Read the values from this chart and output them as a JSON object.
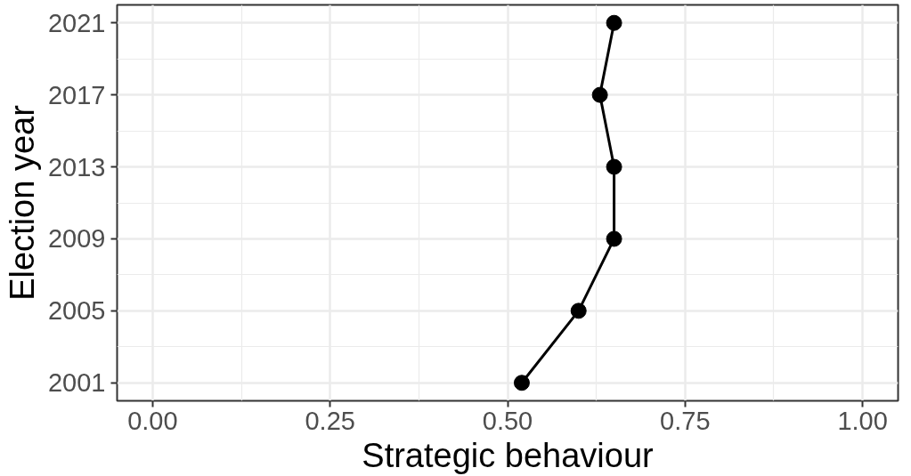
{
  "chart_data": {
    "type": "line",
    "xlabel": "Strategic behaviour",
    "ylabel": "Election year",
    "x": [
      0.52,
      0.6,
      0.65,
      0.65,
      0.63,
      0.65
    ],
    "series": [
      {
        "color": "#000000",
        "values": [
          2001,
          2005,
          2009,
          2013,
          2017,
          2021
        ]
      }
    ],
    "xlim": [
      -0.05,
      1.05
    ],
    "xticks": [
      {
        "value": 0,
        "label": "0.00"
      },
      0.25,
      {
        "value": 0.5,
        "label": "0.50"
      },
      0.75,
      {
        "value": 1,
        "label": "1.00"
      }
    ],
    "ylim": [
      2000,
      2022
    ],
    "yticks": [
      2001,
      2005,
      2009,
      2013,
      2017,
      2021
    ],
    "grid": true,
    "marker": "circle",
    "line_style": "solid"
  }
}
